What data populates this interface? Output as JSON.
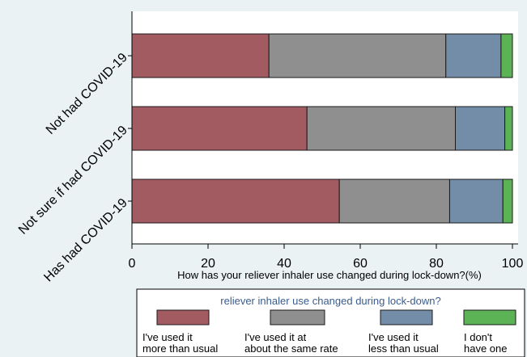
{
  "chart_data": {
    "type": "bar",
    "orientation": "horizontal",
    "stacked": true,
    "categories": [
      "Not had COVID-19",
      "Not sure if had COVID-19",
      "Has had COVID-19"
    ],
    "series": [
      {
        "name": "I've used it more than usual",
        "name_lines": [
          "I've used it",
          "more than usual"
        ],
        "color": "#a25b61",
        "values": [
          36,
          46,
          54.5
        ]
      },
      {
        "name": "I've used it at about the same rate",
        "name_lines": [
          "I've used it at",
          "about the same rate"
        ],
        "color": "#8f8f8f",
        "values": [
          46.5,
          39,
          29
        ]
      },
      {
        "name": "I've used it less than usual",
        "name_lines": [
          "I've used it",
          "less than usual"
        ],
        "color": "#738ca8",
        "values": [
          14.5,
          13,
          14
        ]
      },
      {
        "name": "I don't have one",
        "name_lines": [
          "I don't",
          "have one"
        ],
        "color": "#5bb356",
        "values": [
          3,
          2,
          2.5
        ]
      }
    ],
    "xlabel": "How has your reliever inhaler use changed during lock-down?(%)",
    "xlim": [
      0,
      100
    ],
    "xticks": [
      0,
      20,
      40,
      60,
      80,
      100
    ],
    "grid": false,
    "legend": {
      "title": "reliever inhaler use changed during lock-down?",
      "placement": "bottom"
    },
    "colors": {
      "background": "#eaf2f4",
      "plot": "#ffffff"
    }
  }
}
